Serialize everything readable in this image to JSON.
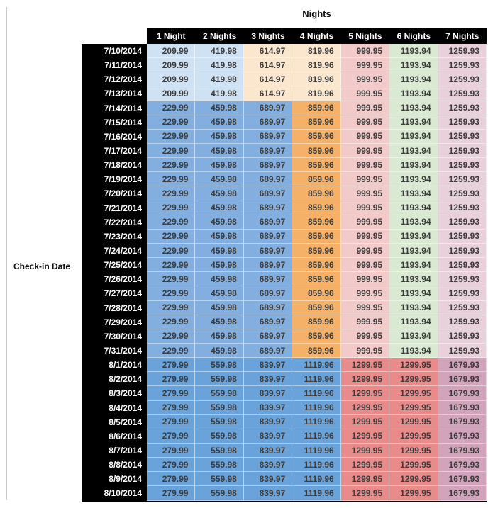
{
  "title": "Nights",
  "row_axis_label": "Check-in Date",
  "colors": {
    "header_bg": "#000000",
    "header_text": "#ffffff",
    "value_text": "#3b3b3b",
    "label_text": "#0d0d0d",
    "left_rule": "#c9c9c9",
    "table_bottom_border": "#000000"
  },
  "chart_data": {
    "type": "table",
    "title": "Nights",
    "row_header_label": "Check-in Date",
    "columns": [
      "1 Night",
      "2 Nights",
      "3 Nights",
      "4 Nights",
      "5 Nights",
      "6 Nights",
      "7 Nights"
    ],
    "palette": {
      "lightBlue": "#cfe2f3",
      "midBlue": "#82afdf",
      "darkBlue": "#6aa3d9",
      "lightOrange": "#fbe6ce",
      "midOrange": "#f4b167",
      "lightRed": "#f3caca",
      "midRed": "#e88b8b",
      "lightGreen": "#d9e9d2",
      "lightMauve": "#e9d1dc",
      "midMauve": "#d2a4bc"
    },
    "cell_fills": {
      "early_july": [
        "lightBlue",
        "lightBlue",
        "lightOrange",
        "lightOrange",
        "lightRed",
        "lightGreen",
        "lightMauve"
      ],
      "mid_july": [
        "midBlue",
        "midBlue",
        "midBlue",
        "midOrange",
        "lightRed",
        "lightGreen",
        "lightMauve"
      ],
      "august": [
        "darkBlue",
        "darkBlue",
        "darkBlue",
        "darkBlue",
        "midRed",
        "midRed",
        "midMauve"
      ]
    },
    "rows": [
      {
        "date": "7/10/2014",
        "fill_key": "early_july",
        "values": [
          209.99,
          419.98,
          614.97,
          819.96,
          999.95,
          1193.94,
          1259.93
        ]
      },
      {
        "date": "7/11/2014",
        "fill_key": "early_july",
        "values": [
          209.99,
          419.98,
          614.97,
          819.96,
          999.95,
          1193.94,
          1259.93
        ]
      },
      {
        "date": "7/12/2014",
        "fill_key": "early_july",
        "values": [
          209.99,
          419.98,
          614.97,
          819.96,
          999.95,
          1193.94,
          1259.93
        ]
      },
      {
        "date": "7/13/2014",
        "fill_key": "early_july",
        "values": [
          209.99,
          419.98,
          614.97,
          819.96,
          999.95,
          1193.94,
          1259.93
        ]
      },
      {
        "date": "7/14/2014",
        "fill_key": "mid_july",
        "values": [
          229.99,
          459.98,
          689.97,
          859.96,
          999.95,
          1193.94,
          1259.93
        ]
      },
      {
        "date": "7/15/2014",
        "fill_key": "mid_july",
        "values": [
          229.99,
          459.98,
          689.97,
          859.96,
          999.95,
          1193.94,
          1259.93
        ]
      },
      {
        "date": "7/16/2014",
        "fill_key": "mid_july",
        "values": [
          229.99,
          459.98,
          689.97,
          859.96,
          999.95,
          1193.94,
          1259.93
        ]
      },
      {
        "date": "7/17/2014",
        "fill_key": "mid_july",
        "values": [
          229.99,
          459.98,
          689.97,
          859.96,
          999.95,
          1193.94,
          1259.93
        ]
      },
      {
        "date": "7/18/2014",
        "fill_key": "mid_july",
        "values": [
          229.99,
          459.98,
          689.97,
          859.96,
          999.95,
          1193.94,
          1259.93
        ]
      },
      {
        "date": "7/19/2014",
        "fill_key": "mid_july",
        "values": [
          229.99,
          459.98,
          689.97,
          859.96,
          999.95,
          1193.94,
          1259.93
        ]
      },
      {
        "date": "7/20/2014",
        "fill_key": "mid_july",
        "values": [
          229.99,
          459.98,
          689.97,
          859.96,
          999.95,
          1193.94,
          1259.93
        ]
      },
      {
        "date": "7/21/2014",
        "fill_key": "mid_july",
        "values": [
          229.99,
          459.98,
          689.97,
          859.96,
          999.95,
          1193.94,
          1259.93
        ]
      },
      {
        "date": "7/22/2014",
        "fill_key": "mid_july",
        "values": [
          229.99,
          459.98,
          689.97,
          859.96,
          999.95,
          1193.94,
          1259.93
        ]
      },
      {
        "date": "7/23/2014",
        "fill_key": "mid_july",
        "values": [
          229.99,
          459.98,
          689.97,
          859.96,
          999.95,
          1193.94,
          1259.93
        ]
      },
      {
        "date": "7/24/2014",
        "fill_key": "mid_july",
        "values": [
          229.99,
          459.98,
          689.97,
          859.96,
          999.95,
          1193.94,
          1259.93
        ]
      },
      {
        "date": "7/25/2014",
        "fill_key": "mid_july",
        "values": [
          229.99,
          459.98,
          689.97,
          859.96,
          999.95,
          1193.94,
          1259.93
        ]
      },
      {
        "date": "7/26/2014",
        "fill_key": "mid_july",
        "values": [
          229.99,
          459.98,
          689.97,
          859.96,
          999.95,
          1193.94,
          1259.93
        ]
      },
      {
        "date": "7/27/2014",
        "fill_key": "mid_july",
        "values": [
          229.99,
          459.98,
          689.97,
          859.96,
          999.95,
          1193.94,
          1259.93
        ]
      },
      {
        "date": "7/28/2014",
        "fill_key": "mid_july",
        "values": [
          229.99,
          459.98,
          689.97,
          859.96,
          999.95,
          1193.94,
          1259.93
        ]
      },
      {
        "date": "7/29/2014",
        "fill_key": "mid_july",
        "values": [
          229.99,
          459.98,
          689.97,
          859.96,
          999.95,
          1193.94,
          1259.93
        ]
      },
      {
        "date": "7/30/2014",
        "fill_key": "mid_july",
        "values": [
          229.99,
          459.98,
          689.97,
          859.96,
          999.95,
          1193.94,
          1259.93
        ]
      },
      {
        "date": "7/31/2014",
        "fill_key": "mid_july",
        "values": [
          229.99,
          459.98,
          689.97,
          859.96,
          999.95,
          1193.94,
          1259.93
        ]
      },
      {
        "date": "8/1/2014",
        "fill_key": "august",
        "values": [
          279.99,
          559.98,
          839.97,
          1119.96,
          1299.95,
          1299.95,
          1679.93
        ]
      },
      {
        "date": "8/2/2014",
        "fill_key": "august",
        "values": [
          279.99,
          559.98,
          839.97,
          1119.96,
          1299.95,
          1299.95,
          1679.93
        ]
      },
      {
        "date": "8/3/2014",
        "fill_key": "august",
        "values": [
          279.99,
          559.98,
          839.97,
          1119.96,
          1299.95,
          1299.95,
          1679.93
        ]
      },
      {
        "date": "8/4/2014",
        "fill_key": "august",
        "values": [
          279.99,
          559.98,
          839.97,
          1119.96,
          1299.95,
          1299.95,
          1679.93
        ]
      },
      {
        "date": "8/5/2014",
        "fill_key": "august",
        "values": [
          279.99,
          559.98,
          839.97,
          1119.96,
          1299.95,
          1299.95,
          1679.93
        ]
      },
      {
        "date": "8/6/2014",
        "fill_key": "august",
        "values": [
          279.99,
          559.98,
          839.97,
          1119.96,
          1299.95,
          1299.95,
          1679.93
        ]
      },
      {
        "date": "8/7/2014",
        "fill_key": "august",
        "values": [
          279.99,
          559.98,
          839.97,
          1119.96,
          1299.95,
          1299.95,
          1679.93
        ]
      },
      {
        "date": "8/8/2014",
        "fill_key": "august",
        "values": [
          279.99,
          559.98,
          839.97,
          1119.96,
          1299.95,
          1299.95,
          1679.93
        ]
      },
      {
        "date": "8/9/2014",
        "fill_key": "august",
        "values": [
          279.99,
          559.98,
          839.97,
          1119.96,
          1299.95,
          1299.95,
          1679.93
        ]
      },
      {
        "date": "8/10/2014",
        "fill_key": "august",
        "values": [
          279.99,
          559.98,
          839.97,
          1119.96,
          1299.95,
          1299.95,
          1679.93
        ]
      }
    ]
  }
}
